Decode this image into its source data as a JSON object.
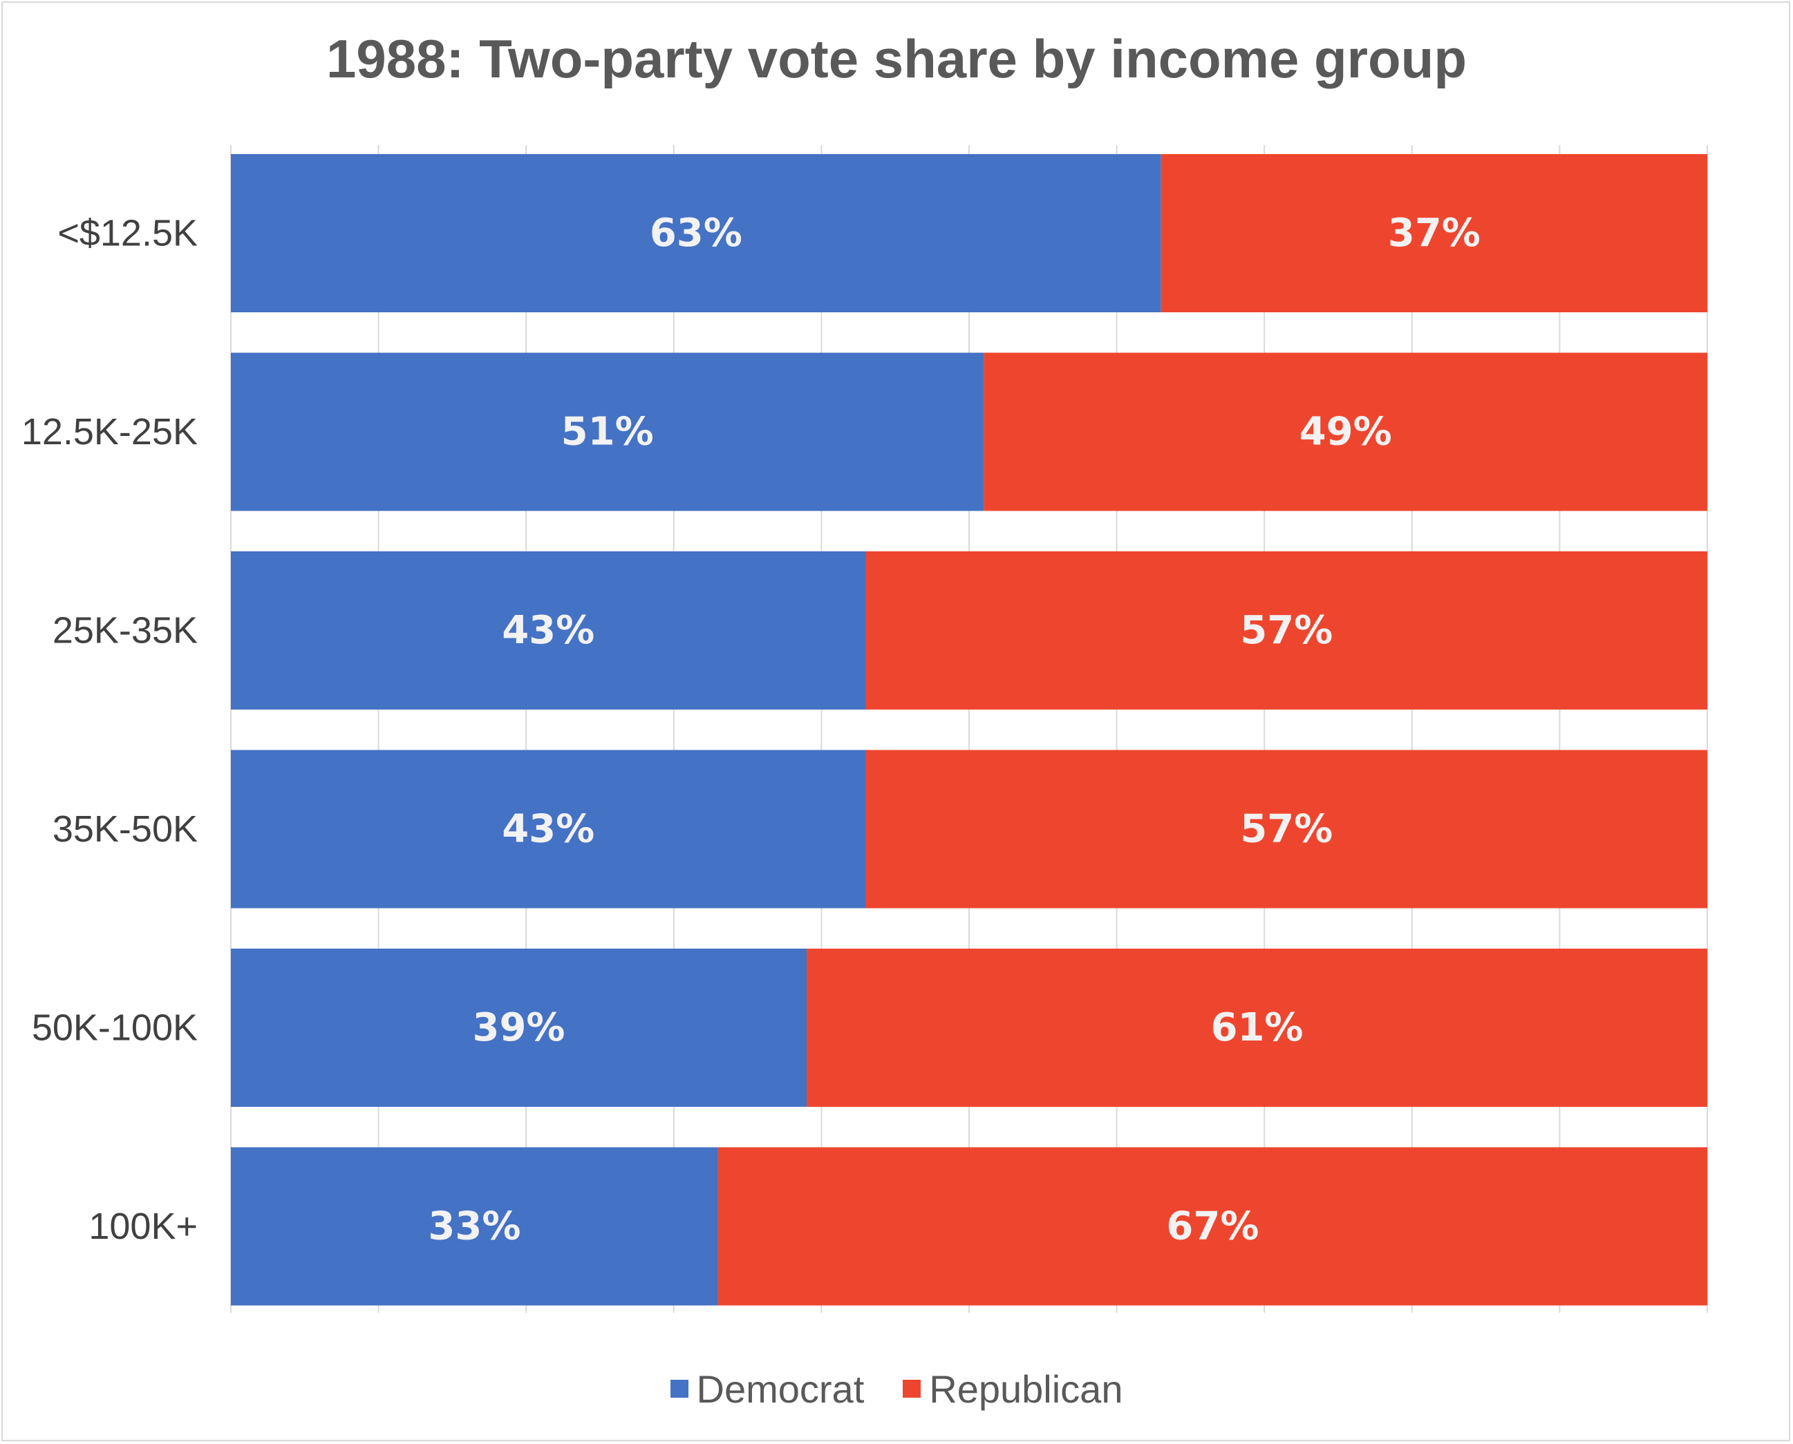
{
  "chart_data": {
    "type": "bar",
    "orientation": "horizontal",
    "stacked": true,
    "title": "1988: Two-party vote share by income group",
    "categories": [
      "<$12.5K",
      "12.5K-25K",
      "25K-35K",
      "35K-50K",
      "50K-100K",
      "100K+"
    ],
    "series": [
      {
        "name": "Democrat",
        "color": "#4472c4",
        "values": [
          63,
          51,
          43,
          43,
          39,
          33
        ],
        "labels": [
          "63%",
          "51%",
          "43%",
          "43%",
          "39%",
          "33%"
        ]
      },
      {
        "name": "Republican",
        "color": "#ee462e",
        "values": [
          37,
          49,
          57,
          57,
          61,
          67
        ],
        "labels": [
          "37%",
          "49%",
          "57%",
          "57%",
          "61%",
          "67%"
        ]
      }
    ],
    "xlim": [
      0,
      100
    ],
    "grid": true,
    "legend_position": "bottom"
  }
}
